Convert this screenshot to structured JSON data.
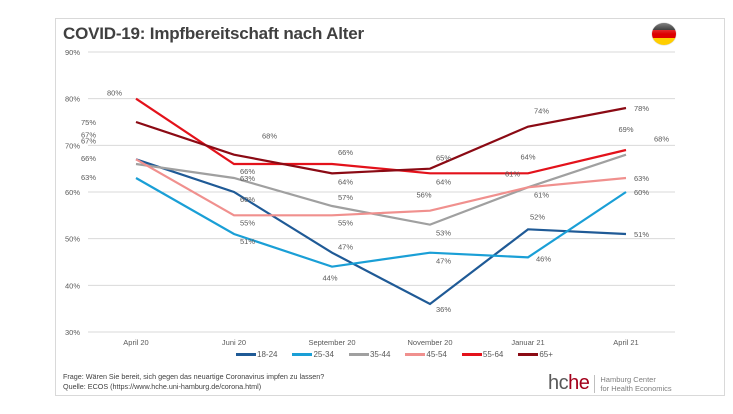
{
  "header": {
    "title": "COVID-19: Impfbereitschaft nach Alter",
    "flag_icon": "germany-flag-icon"
  },
  "chart_data": {
    "type": "line",
    "title": "COVID-19: Impfbereitschaft nach Alter",
    "xlabel": "",
    "ylabel": "",
    "categories": [
      "April 20",
      "Juni 20",
      "September 20",
      "November 20",
      "Januar 21",
      "April 21"
    ],
    "ylim": [
      30,
      90
    ],
    "yticks": [
      30,
      40,
      50,
      60,
      70,
      80,
      90
    ],
    "ytick_labels": [
      "30%",
      "40%",
      "50%",
      "60%",
      "70%",
      "80%",
      "90%"
    ],
    "grid": true,
    "legend_position": "bottom",
    "value_suffix": "%",
    "series": [
      {
        "name": "18-24",
        "color": "#1f5a96",
        "values": [
          67,
          60,
          47,
          36,
          52,
          51
        ]
      },
      {
        "name": "25-34",
        "color": "#1a9fd6",
        "values": [
          63,
          51,
          44,
          47,
          46,
          60
        ]
      },
      {
        "name": "35-44",
        "color": "#a0a0a0",
        "values": [
          66,
          63,
          57,
          53,
          61,
          68
        ]
      },
      {
        "name": "45-54",
        "color": "#f0908e",
        "values": [
          67,
          55,
          55,
          56,
          61,
          63
        ]
      },
      {
        "name": "55-64",
        "color": "#e3121b",
        "values": [
          80,
          66,
          66,
          64,
          64,
          69
        ]
      },
      {
        "name": "65+",
        "color": "#8b0a14",
        "values": [
          75,
          68,
          64,
          65,
          74,
          78
        ]
      }
    ]
  },
  "footnote": {
    "question": "Frage: Wären Sie bereit, sich gegen das neuartige Coronavirus impfen zu lassen?",
    "source": "Quelle: ECOS (https://www.hche.uni-hamburg.de/corona.html)"
  },
  "logo": {
    "part1": "hc",
    "part2": "he",
    "line1": "Hamburg Center",
    "line2": "for Health Economics"
  }
}
